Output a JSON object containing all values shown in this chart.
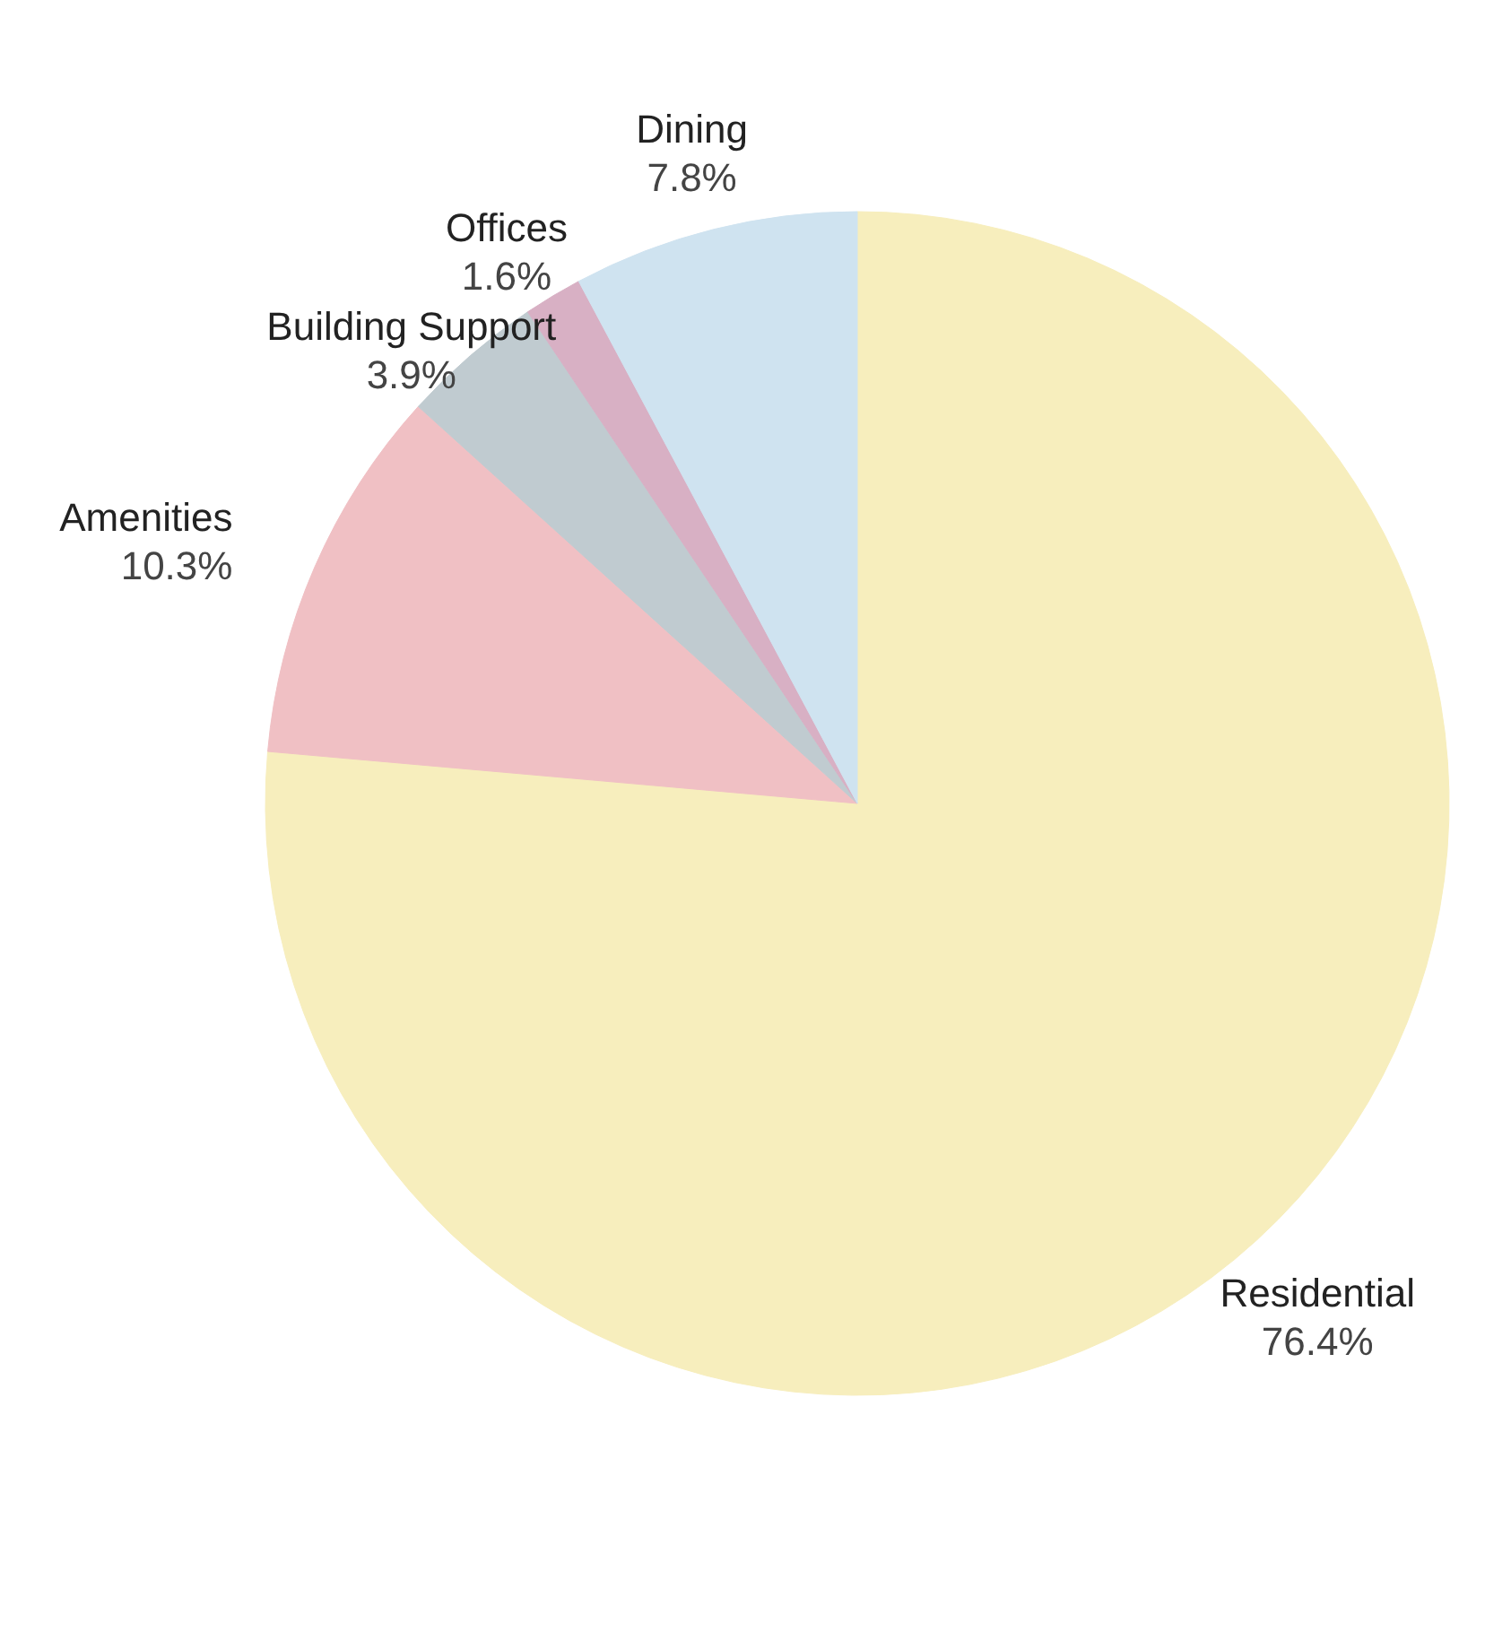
{
  "chart_data": {
    "type": "pie",
    "categories": [
      "Residential",
      "Amenities",
      "Building Support",
      "Offices",
      "Dining"
    ],
    "values": [
      76.4,
      10.3,
      3.9,
      1.6,
      7.8
    ],
    "value_labels": [
      "76.4%",
      "10.3%",
      "3.9%",
      "1.6%",
      "7.8%"
    ],
    "colors": [
      "#f7eebd",
      "#f0c0c4",
      "#c0cbd0",
      "#d8b0c4",
      "#cfe3f0"
    ]
  }
}
